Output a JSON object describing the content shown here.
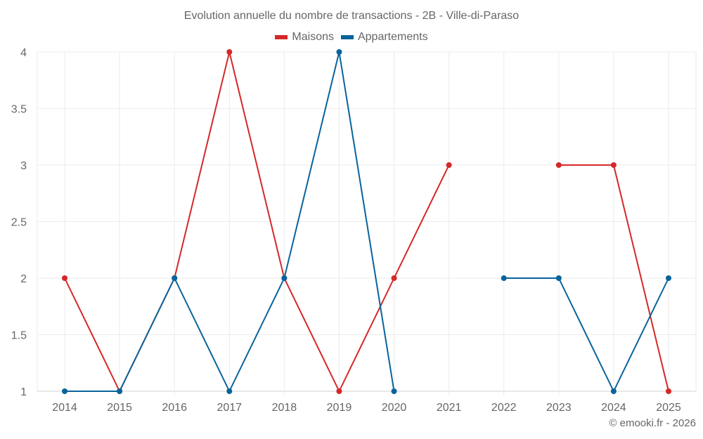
{
  "chart_data": {
    "type": "line",
    "title": "Evolution annuelle du nombre de transactions - 2B - Ville-di-Paraso",
    "xlabel": "",
    "ylabel": "",
    "categories": [
      "2014",
      "2015",
      "2016",
      "2017",
      "2018",
      "2019",
      "2020",
      "2021",
      "2022",
      "2023",
      "2024",
      "2025"
    ],
    "ylim": [
      1,
      4
    ],
    "yticks": [
      "1",
      "1.5",
      "2",
      "2.5",
      "3",
      "3.5",
      "4"
    ],
    "grid": true,
    "legend_position": "top",
    "series": [
      {
        "name": "Maisons",
        "color": "#d62728",
        "values": [
          2,
          1,
          2,
          4,
          2,
          1,
          2,
          3,
          null,
          3,
          3,
          1
        ]
      },
      {
        "name": "Appartements",
        "color": "#08639c",
        "values": [
          1,
          1,
          2,
          1,
          2,
          4,
          1,
          null,
          2,
          2,
          1,
          2
        ]
      }
    ]
  },
  "legend": {
    "items": [
      {
        "label": "Maisons",
        "color": "#d62728"
      },
      {
        "label": "Appartements",
        "color": "#08639c"
      }
    ]
  },
  "credit": "© emooki.fr - 2026"
}
